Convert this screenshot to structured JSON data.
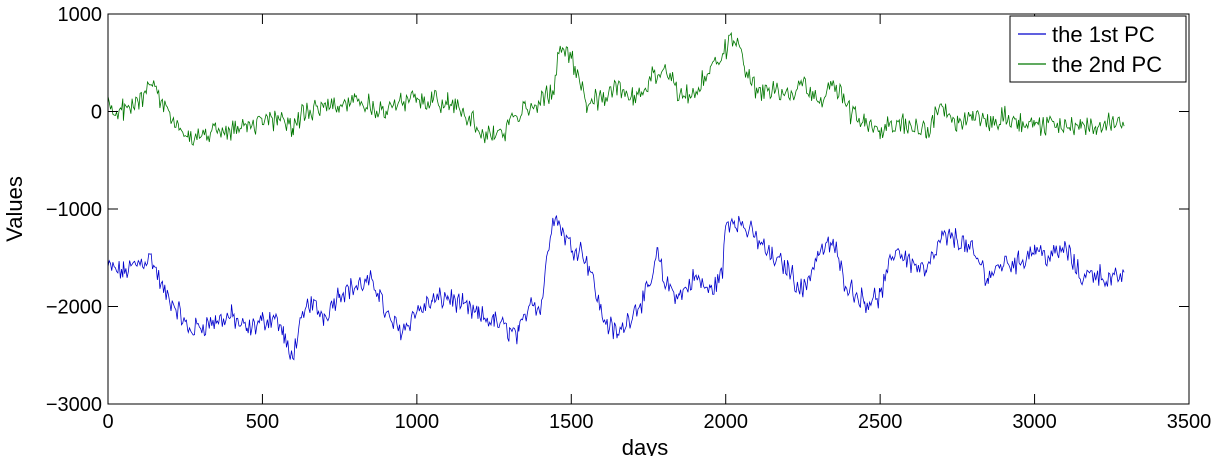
{
  "chart_data": {
    "type": "line",
    "xlabel": "days",
    "ylabel": "Values",
    "xlim": [
      0,
      3500
    ],
    "ylim": [
      -3000,
      1000
    ],
    "xticks": [
      0,
      500,
      1000,
      1500,
      2000,
      2500,
      3000,
      3500
    ],
    "yticks": [
      -3000,
      -2000,
      -1000,
      0,
      1000
    ],
    "xtick_labels": [
      "0",
      "500",
      "1000",
      "1500",
      "2000",
      "2500",
      "3000",
      "3500"
    ],
    "ytick_labels": [
      "−3000",
      "−2000",
      "−1000",
      "0",
      "1000"
    ],
    "grid": false,
    "legend_position": "top-right",
    "series": [
      {
        "name": "the 1st PC",
        "color": "#0000cc",
        "x": [
          0,
          50,
          100,
          140,
          180,
          230,
          260,
          300,
          350,
          400,
          450,
          500,
          540,
          570,
          590,
          610,
          650,
          700,
          750,
          800,
          850,
          880,
          900,
          950,
          1000,
          1050,
          1100,
          1150,
          1200,
          1250,
          1300,
          1330,
          1370,
          1400,
          1440,
          1460,
          1500,
          1530,
          1560,
          1600,
          1650,
          1700,
          1750,
          1780,
          1800,
          1850,
          1900,
          1950,
          1990,
          2000,
          2030,
          2100,
          2150,
          2200,
          2250,
          2300,
          2350,
          2380,
          2400,
          2450,
          2500,
          2550,
          2600,
          2650,
          2700,
          2750,
          2800,
          2850,
          2900,
          2950,
          3000,
          3050,
          3100,
          3150,
          3200,
          3250,
          3290
        ],
        "y": [
          -1600,
          -1650,
          -1550,
          -1500,
          -1850,
          -2050,
          -2250,
          -2200,
          -2150,
          -2100,
          -2250,
          -2150,
          -2100,
          -2300,
          -2550,
          -2350,
          -1950,
          -2100,
          -1850,
          -1800,
          -1750,
          -1850,
          -2100,
          -2250,
          -2050,
          -1950,
          -1900,
          -2000,
          -2100,
          -2150,
          -2250,
          -2300,
          -1900,
          -2050,
          -1050,
          -1150,
          -1400,
          -1400,
          -1600,
          -2100,
          -2300,
          -2050,
          -1850,
          -1450,
          -1750,
          -1900,
          -1700,
          -1850,
          -1650,
          -1150,
          -1100,
          -1300,
          -1500,
          -1600,
          -1850,
          -1450,
          -1350,
          -1700,
          -1800,
          -1950,
          -1900,
          -1400,
          -1550,
          -1650,
          -1300,
          -1300,
          -1450,
          -1700,
          -1550,
          -1550,
          -1400,
          -1500,
          -1400,
          -1700,
          -1650,
          -1750,
          -1650
        ]
      },
      {
        "name": "the 2nd PC",
        "color": "#007700",
        "x": [
          0,
          50,
          100,
          140,
          180,
          230,
          260,
          300,
          350,
          400,
          450,
          500,
          550,
          600,
          650,
          700,
          750,
          800,
          850,
          900,
          950,
          1000,
          1050,
          1100,
          1150,
          1200,
          1250,
          1300,
          1350,
          1400,
          1440,
          1460,
          1500,
          1550,
          1600,
          1650,
          1700,
          1750,
          1780,
          1820,
          1870,
          1900,
          1950,
          1990,
          2030,
          2060,
          2100,
          2150,
          2200,
          2250,
          2300,
          2350,
          2400,
          2450,
          2500,
          2550,
          2600,
          2650,
          2700,
          2750,
          2800,
          2850,
          2900,
          2950,
          3000,
          3050,
          3100,
          3150,
          3200,
          3250,
          3290
        ],
        "y": [
          50,
          0,
          100,
          350,
          50,
          -150,
          -300,
          -250,
          -200,
          -200,
          -100,
          -150,
          -50,
          -150,
          0,
          100,
          50,
          150,
          50,
          0,
          100,
          100,
          150,
          100,
          0,
          -200,
          -250,
          -150,
          50,
          100,
          200,
          650,
          550,
          100,
          150,
          250,
          150,
          250,
          450,
          300,
          150,
          200,
          400,
          600,
          750,
          500,
          200,
          200,
          150,
          300,
          100,
          300,
          0,
          -100,
          -150,
          -100,
          -150,
          -200,
          50,
          -100,
          -50,
          -100,
          -50,
          -100,
          -100,
          -150,
          -150,
          -100,
          -200,
          -100,
          -150
        ]
      }
    ]
  }
}
